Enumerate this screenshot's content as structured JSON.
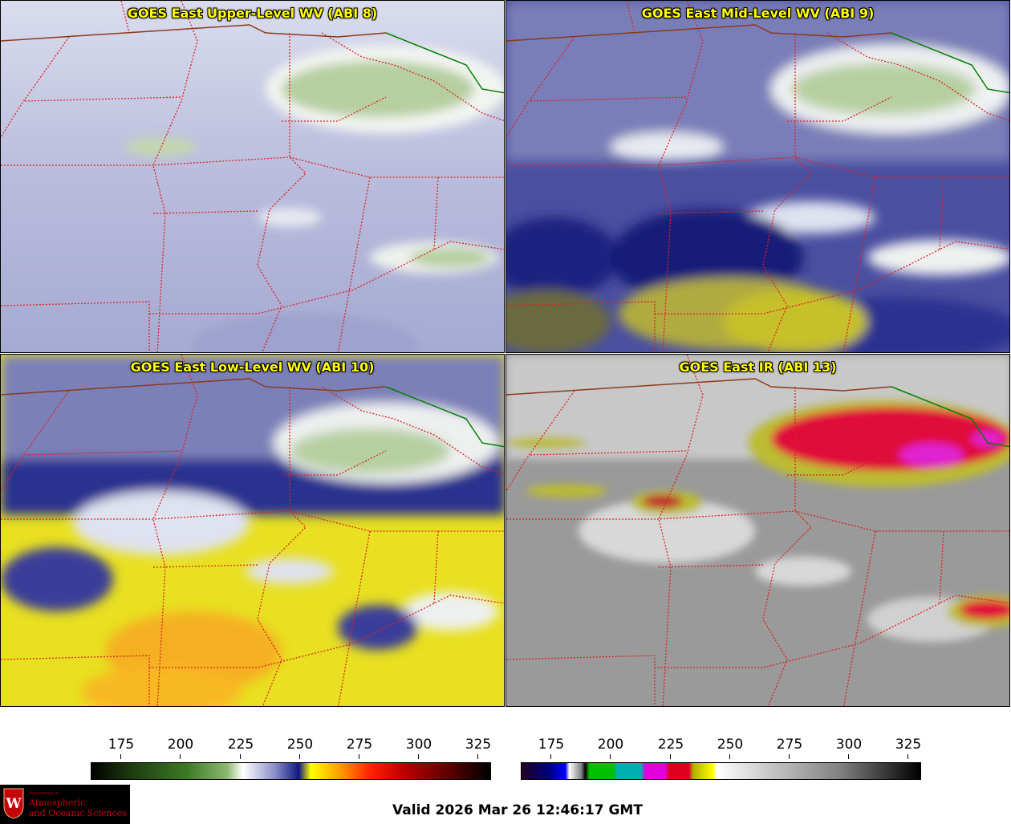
{
  "panels": [
    {
      "title": "GOES East Upper-Level WV (ABI 8)"
    },
    {
      "title": "GOES East Mid-Level WV (ABI 9)"
    },
    {
      "title": "GOES East Low-Level WV (ABI 10)"
    },
    {
      "title": "GOES East IR (ABI 13)"
    }
  ],
  "colorbars": {
    "wv": {
      "ticks": [
        "175",
        "200",
        "225",
        "250",
        "275",
        "300",
        "325"
      ]
    },
    "ir": {
      "ticks": [
        "175",
        "200",
        "225",
        "250",
        "275",
        "300",
        "325"
      ]
    }
  },
  "logo": {
    "small": "Department of",
    "line1": "Atmospheric",
    "line2": "and Oceanic Sciences"
  },
  "footer": {
    "valid": "Valid 2026 Mar 26 12:46:17 GMT"
  }
}
